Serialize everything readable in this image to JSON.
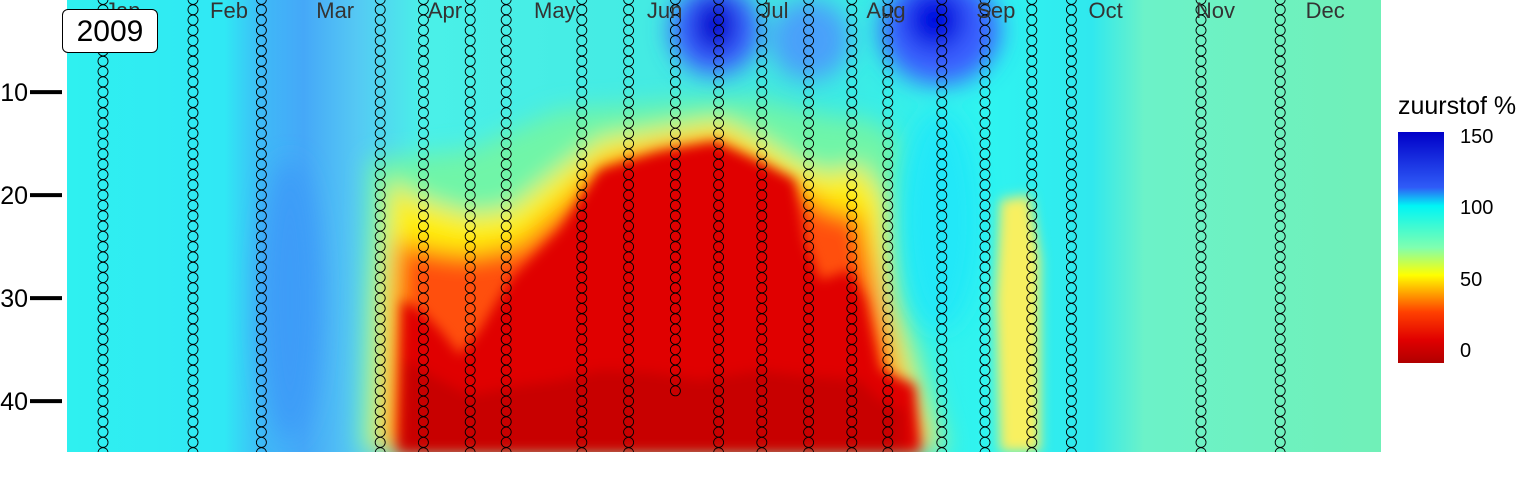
{
  "panel_label": "2009",
  "legend": {
    "title": "zuurstof %",
    "ticks": [
      "150",
      "100",
      "50",
      "0"
    ]
  },
  "chart_data": {
    "type": "heatmap",
    "title": "",
    "xlabel": "",
    "ylabel": "",
    "x_ticks": [
      "Jan",
      "Feb",
      "Mar",
      "Apr",
      "May",
      "Jun",
      "Jul",
      "Aug",
      "Sep",
      "Oct",
      "Nov",
      "Dec"
    ],
    "y_ticks": [
      10,
      20,
      30,
      40
    ],
    "y_reversed": true,
    "ylim": [
      45,
      1
    ],
    "color_scale": {
      "label": "zuurstof %",
      "range": [
        0,
        150
      ],
      "stops": [
        "#b00000",
        "#e00000",
        "#ff4000",
        "#ffff00",
        "#7fffb0",
        "#00f5f5",
        "#2f5cf7",
        "#0000c8"
      ]
    },
    "sample_profiles": [
      {
        "date": "2009-01-11",
        "max_depth": 45
      },
      {
        "date": "2009-02-05",
        "max_depth": 45
      },
      {
        "date": "2009-02-24",
        "max_depth": 45
      },
      {
        "date": "2009-03-29",
        "max_depth": 45
      },
      {
        "date": "2009-04-10",
        "max_depth": 45
      },
      {
        "date": "2009-04-23",
        "max_depth": 45
      },
      {
        "date": "2009-05-03",
        "max_depth": 45
      },
      {
        "date": "2009-05-24",
        "max_depth": 45
      },
      {
        "date": "2009-06-06",
        "max_depth": 45
      },
      {
        "date": "2009-06-19",
        "max_depth": 39
      },
      {
        "date": "2009-07-01",
        "max_depth": 45
      },
      {
        "date": "2009-07-13",
        "max_depth": 45
      },
      {
        "date": "2009-07-26",
        "max_depth": 45
      },
      {
        "date": "2009-08-07",
        "max_depth": 45
      },
      {
        "date": "2009-08-17",
        "max_depth": 45
      },
      {
        "date": "2009-09-01",
        "max_depth": 45
      },
      {
        "date": "2009-09-13",
        "max_depth": 45
      },
      {
        "date": "2009-09-26",
        "max_depth": 45
      },
      {
        "date": "2009-10-07",
        "max_depth": 45
      },
      {
        "date": "2009-11-12",
        "max_depth": 45
      },
      {
        "date": "2009-12-04",
        "max_depth": 45
      }
    ],
    "regions": [
      {
        "description": "hypoxic bottom water",
        "value": 5,
        "date_from": "2009-03-25",
        "date_to": "2009-08-22",
        "top_depth": 16
      },
      {
        "description": "supersaturated surface",
        "value": 150,
        "date_from": "2009-06-15",
        "date_to": "2009-06-25",
        "top_depth": 1
      },
      {
        "description": "supersaturated surface",
        "value": 145,
        "date_from": "2009-08-12",
        "date_to": "2009-09-01",
        "top_depth": 1
      }
    ]
  }
}
